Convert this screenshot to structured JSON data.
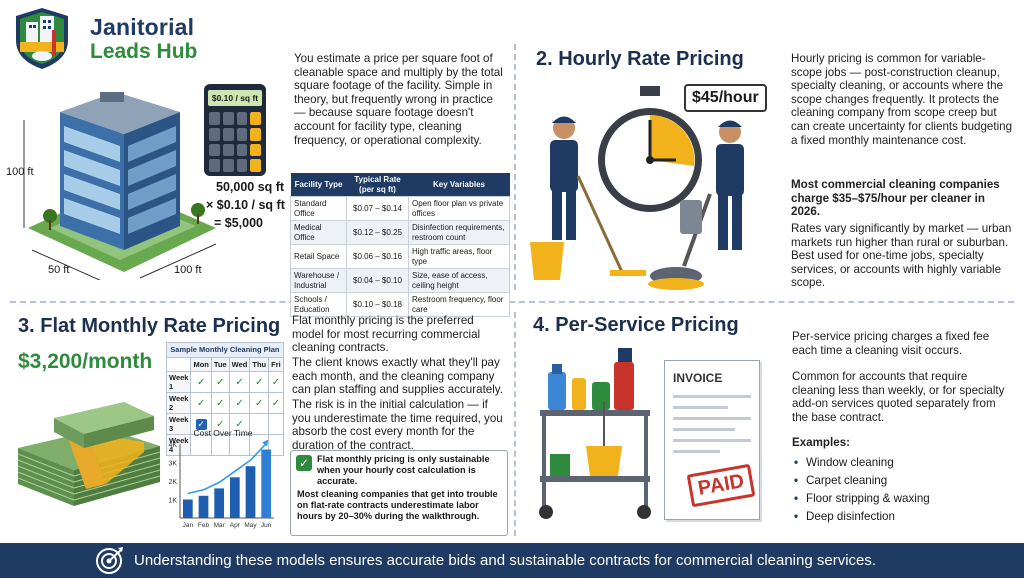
{
  "brand": {
    "line1": "Janitorial",
    "line2": "Leads Hub"
  },
  "colors": {
    "navy": "#1f3a63",
    "green": "#2e8b3e",
    "accent_yellow": "#f2b21b",
    "paid_red": "#c8342b"
  },
  "s1": {
    "intro": "You estimate a price per square foot of cleanable space and multiply by the total square footage of the facility. Simple in theory, but frequently wrong in practice — because square footage doesn't account for facility type, cleaning frequency, or operational complexity.",
    "calc_display": "$0.10 / sq ft",
    "dim_height": "100 ft",
    "dim_width": "50 ft",
    "dim_depth": "100 ft",
    "formula_1": "50,000 sq ft",
    "formula_2": "× $0.10 / sq ft",
    "formula_3": "= $5,000",
    "table": {
      "headers": [
        "Facility Type",
        "Typical Rate (per sq ft)",
        "Key Variables"
      ],
      "rows": [
        [
          "Standard Office",
          "$0.07 – $0.14",
          "Open floor plan vs private offices"
        ],
        [
          "Medical Office",
          "$0.12 – $0.25",
          "Disinfection requirements, restroom count"
        ],
        [
          "Retail Space",
          "$0.06 – $0.16",
          "High traffic areas, floor type"
        ],
        [
          "Warehouse / Industrial",
          "$0.04 – $0.10",
          "Size, ease of access, ceiling height"
        ],
        [
          "Schools / Education",
          "$0.10 – $0.18",
          "Restroom frequency, floor care"
        ]
      ]
    }
  },
  "s2": {
    "title": "2. Hourly Rate Pricing",
    "price_tag": "$45/hour",
    "p1": "Hourly pricing is common for variable-scope jobs — post-construction cleanup, specialty cleaning, or accounts where the scope changes frequently. It protects the cleaning company from scope creep but can create uncertainty for clients budgeting a fixed monthly maintenance cost.",
    "p2": "Most commercial cleaning companies charge $35–$75/hour per cleaner in 2026.",
    "p3": "Rates vary significantly by market — urban markets run higher than rural or suburban. Best used for one-time jobs, specialty services, or accounts with highly variable scope."
  },
  "s3": {
    "title": "3. Flat Monthly Rate Pricing",
    "price": "$3,200/month",
    "plan_title": "Sample Monthly Cleaning Plan",
    "days": [
      "Mon",
      "Tue",
      "Wed",
      "Thu",
      "Fri"
    ],
    "weeks": [
      {
        "label": "Week 1",
        "marks": [
          "✓",
          "✓",
          "✓",
          "✓",
          "✓"
        ]
      },
      {
        "label": "Week 2",
        "marks": [
          "✓",
          "✓",
          "✓",
          "✓",
          "✓"
        ]
      },
      {
        "label": "Week 3",
        "marks": [
          "✓",
          "✓",
          "✓",
          "",
          ""
        ]
      },
      {
        "label": "Week 4",
        "marks": [
          "",
          "",
          "",
          "",
          ""
        ]
      }
    ],
    "p1": "Flat monthly pricing is the preferred model for most recurring commercial cleaning contracts.",
    "p2": "The client knows exactly what they'll pay each month, and the cleaning company can plan staffing and supplies accurately.",
    "p3": "The risk is in the initial calculation — if you underestimate the time required, you absorb the cost every month for the duration of the contract.",
    "callout_1": "Flat monthly pricing is only sustainable when your hourly cost calculation is accurate.",
    "callout_2": "Most cleaning companies that get into trouble on flat-rate contracts underestimate labor hours by 20–30% during the walkthrough."
  },
  "chart_data": {
    "type": "bar",
    "title": "Cost Over Time",
    "categories": [
      "Jan",
      "Feb",
      "Mar",
      "Apr",
      "May",
      "Jun"
    ],
    "values": [
      1.0,
      1.2,
      1.6,
      2.2,
      2.8,
      3.7
    ],
    "yticks": [
      "1K",
      "2K",
      "3K",
      "4K"
    ],
    "ylim": [
      0,
      4
    ],
    "trend_line": true,
    "grid": false
  },
  "s4": {
    "title": "4. Per-Service Pricing",
    "invoice_label": "INVOICE",
    "paid_label": "PAID",
    "p1": "Per-service pricing charges a fixed fee each time a cleaning visit occurs.",
    "p2": "Common for accounts that require cleaning less than weekly, or for specialty add-on services quoted separately from the base contract.",
    "examples_label": "Examples:",
    "examples": [
      "Window cleaning",
      "Carpet cleaning",
      "Floor stripping & waxing",
      "Deep disinfection"
    ]
  },
  "footer": {
    "text": "Understanding these models ensures accurate bids and sustainable contracts for commercial cleaning services."
  }
}
